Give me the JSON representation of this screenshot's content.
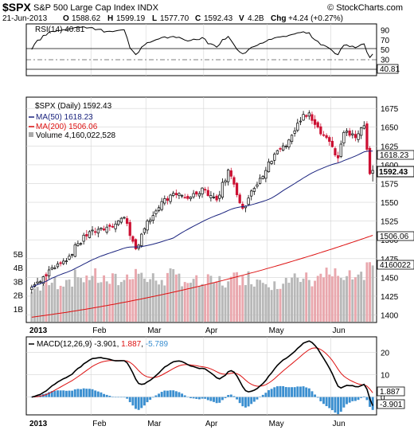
{
  "header": {
    "symbol": "$SPX",
    "name": "S&P 500 Large Cap Index INDX",
    "copyright": "© StockCharts.com",
    "date": "21-Jun-2013",
    "open_label": "O",
    "open": "1588.62",
    "high_label": "H",
    "high": "1599.19",
    "low_label": "L",
    "low": "1577.70",
    "close_label": "C",
    "close": "1592.43",
    "volume_label": "V",
    "volume": "4.2B",
    "change_label": "Chg",
    "change": "+4.24 (+0.27%)"
  },
  "rsi": {
    "legend": "RSI(14) 40.81",
    "last_value_tag": "40.81",
    "ticks": [
      "90",
      "70",
      "50",
      "30",
      "10"
    ]
  },
  "price": {
    "legend_main": "$SPX (Daily) 1592.43",
    "legend_ma50": "MA(50) 1618.23",
    "legend_ma200": "MA(200) 1506.06",
    "legend_volume": "Volume 4,160,022,528",
    "tag_ma50": "1618.23",
    "tag_close": "1592.43",
    "tag_ma200": "1506.06",
    "tag_volume": "4160022",
    "price_ticks": [
      "1675",
      "1650",
      "1625",
      "1600",
      "1575",
      "1550",
      "1525",
      "1500",
      "1475",
      "1450",
      "1425",
      "1400"
    ],
    "volume_ticks": [
      "5B",
      "4B",
      "3B",
      "2B",
      "1B"
    ]
  },
  "macd": {
    "legend_label": "MACD(12,26,9)",
    "legend_macd": "-3.901",
    "legend_signal": "1.887",
    "legend_hist": "-5.789",
    "tag_signal": "1.887",
    "tag_macd": "-3.901",
    "ticks": [
      "20",
      "10",
      "0"
    ]
  },
  "x_axis": {
    "year": "2013",
    "months": [
      "Feb",
      "Mar",
      "Apr",
      "May",
      "Jun"
    ]
  },
  "colors": {
    "up": "#000000",
    "down": "#cc1133",
    "ma50": "#1a237e",
    "ma200": "#dd1111",
    "vol_up": "#b8b8b8",
    "vol_down": "#e9a7ad",
    "hist": "#3b8fd0",
    "macd_line": "#000000",
    "signal_line": "#dd1111",
    "grid": "#d4d4d4"
  },
  "chart_data": {
    "type": "candlestick",
    "symbol": "$SPX",
    "period": "Daily",
    "x_range": [
      "2013-01-02",
      "2013-06-21"
    ],
    "price_ylim": [
      1390,
      1690
    ],
    "anchors": [
      {
        "date": "2013-01-02",
        "close": 1437,
        "volume_b": 2.2
      },
      {
        "date": "2013-01-04",
        "close": 1444,
        "volume_b": 2.6
      },
      {
        "date": "2013-01-11",
        "close": 1463,
        "volume_b": 2.9
      },
      {
        "date": "2013-01-18",
        "close": 1472,
        "volume_b": 3.1
      },
      {
        "date": "2013-01-25",
        "close": 1495,
        "volume_b": 3.3
      },
      {
        "date": "2013-02-01",
        "close": 1513,
        "volume_b": 3.4
      },
      {
        "date": "2013-02-08",
        "close": 1517,
        "volume_b": 3.0
      },
      {
        "date": "2013-02-19",
        "close": 1530,
        "volume_b": 3.1
      },
      {
        "date": "2013-02-25",
        "close": 1488,
        "volume_b": 3.9
      },
      {
        "date": "2013-02-28",
        "close": 1515,
        "volume_b": 3.2
      },
      {
        "date": "2013-03-08",
        "close": 1551,
        "volume_b": 3.1
      },
      {
        "date": "2013-03-15",
        "close": 1560,
        "volume_b": 3.5
      },
      {
        "date": "2013-03-22",
        "close": 1557,
        "volume_b": 2.9
      },
      {
        "date": "2013-03-28",
        "close": 1569,
        "volume_b": 2.8
      },
      {
        "date": "2013-04-05",
        "close": 1553,
        "volume_b": 3.0
      },
      {
        "date": "2013-04-11",
        "close": 1593,
        "volume_b": 3.0
      },
      {
        "date": "2013-04-18",
        "close": 1542,
        "volume_b": 3.4
      },
      {
        "date": "2013-04-26",
        "close": 1582,
        "volume_b": 3.1
      },
      {
        "date": "2013-05-03",
        "close": 1614,
        "volume_b": 3.0
      },
      {
        "date": "2013-05-10",
        "close": 1633,
        "volume_b": 2.9
      },
      {
        "date": "2013-05-17",
        "close": 1667,
        "volume_b": 3.2
      },
      {
        "date": "2013-05-21",
        "close": 1669,
        "volume_b": 3.1
      },
      {
        "date": "2013-05-24",
        "close": 1650,
        "volume_b": 3.4
      },
      {
        "date": "2013-05-31",
        "close": 1631,
        "volume_b": 3.5
      },
      {
        "date": "2013-06-05",
        "close": 1609,
        "volume_b": 3.4
      },
      {
        "date": "2013-06-07",
        "close": 1643,
        "volume_b": 3.1
      },
      {
        "date": "2013-06-13",
        "close": 1636,
        "volume_b": 3.3
      },
      {
        "date": "2013-06-18",
        "close": 1652,
        "volume_b": 3.1
      },
      {
        "date": "2013-06-20",
        "close": 1588,
        "volume_b": 4.4
      },
      {
        "date": "2013-06-21",
        "close": 1592.43,
        "volume_b": 4.16
      }
    ],
    "last": {
      "open": 1588.62,
      "high": 1599.19,
      "low": 1577.7,
      "close": 1592.43,
      "volume": 4160022528
    },
    "ma50_last": 1618.23,
    "ma200_last": 1506.06,
    "rsi_last": 40.81,
    "rsi_ylim": [
      0,
      100
    ],
    "macd_last": -3.901,
    "signal_last": 1.887,
    "hist_last": -5.789,
    "macd_ylim": [
      -8,
      27
    ]
  }
}
